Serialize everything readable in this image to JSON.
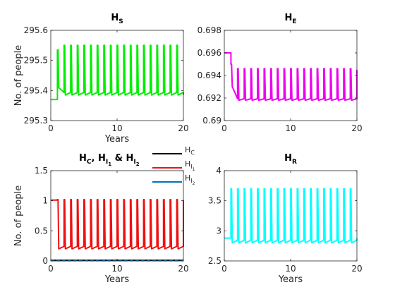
{
  "chart_data": [
    {
      "type": "line",
      "title": "H",
      "title_sub": "S",
      "xlabel": "Years",
      "ylabel": "No. of people",
      "xlim": [
        0,
        20
      ],
      "ylim": [
        295.3,
        295.6
      ],
      "xticks": [
        "0",
        "10",
        "20"
      ],
      "yticks": [
        "295.3",
        "295.4",
        "295.5",
        "295.6"
      ],
      "grid": false,
      "series": [
        {
          "color": "#00ee00",
          "baseline": 295.37,
          "start": 1,
          "period": 1,
          "low": 295.385,
          "high": 295.55,
          "first_high": 295.535,
          "first_low": 295.41,
          "end": 295.385
        }
      ]
    },
    {
      "type": "line",
      "title": "H",
      "title_sub": "E",
      "xlabel": "",
      "ylabel": "",
      "xlim": [
        0,
        20
      ],
      "ylim": [
        0.69,
        0.698
      ],
      "xticks": [
        "0",
        "10",
        "20"
      ],
      "yticks": [
        "0.69",
        "0.692",
        "0.694",
        "0.696",
        "0.698"
      ],
      "grid": false,
      "series": [
        {
          "color": "#ee00ee",
          "baseline": 0.696,
          "start": 1,
          "period": 1,
          "low": 0.6918,
          "high": 0.6946,
          "first_high": 0.695,
          "first_low": 0.693,
          "end": 0.6945
        }
      ]
    },
    {
      "type": "line",
      "title": "H",
      "title_sub": "C",
      "title_rest": ", H",
      "title_sub2": "I",
      "title_subsub2": "1",
      "title_amp": " & H",
      "title_sub3": "I",
      "title_subsub3": "2",
      "xlabel": "Years",
      "ylabel": "No. of people",
      "xlim": [
        0,
        20
      ],
      "ylim": [
        0,
        1.5
      ],
      "xticks": [
        "0",
        "10",
        "20"
      ],
      "yticks": [
        "0",
        "0.5",
        "1",
        "1.5"
      ],
      "grid": false,
      "legend": {
        "placement": "top-right",
        "entries": [
          {
            "name": "H",
            "sub": "C",
            "subsub": "",
            "color": "#000000"
          },
          {
            "name": "H",
            "sub": "I",
            "subsub": "1",
            "color": "#ee1111"
          },
          {
            "name": "H",
            "sub": "I",
            "subsub": "2",
            "color": "#0072bd"
          }
        ]
      },
      "series": [
        {
          "color": "#ee1111",
          "baseline": 1.01,
          "start": 1,
          "period": 1,
          "low": 0.2,
          "high": 1.02,
          "first_high": 1.02,
          "first_low": 0.2,
          "end": 1.01
        },
        {
          "color": "#000000",
          "flat": 0.01
        },
        {
          "color": "#0072bd",
          "flat": 0.005,
          "dashed": true
        }
      ]
    },
    {
      "type": "line",
      "title": "H",
      "title_sub": "R",
      "xlabel": "Years",
      "ylabel": "",
      "xlim": [
        0,
        20
      ],
      "ylim": [
        2.5,
        4
      ],
      "xticks": [
        "0",
        "10",
        "20"
      ],
      "yticks": [
        "2.5",
        "3",
        "3.5",
        "4"
      ],
      "grid": false,
      "series": [
        {
          "color": "#00ffff",
          "baseline": 2.88,
          "start": 1,
          "period": 1,
          "low": 2.8,
          "high": 3.7,
          "first_high": 3.7,
          "first_low": 2.8,
          "end": 2.88
        }
      ]
    }
  ]
}
